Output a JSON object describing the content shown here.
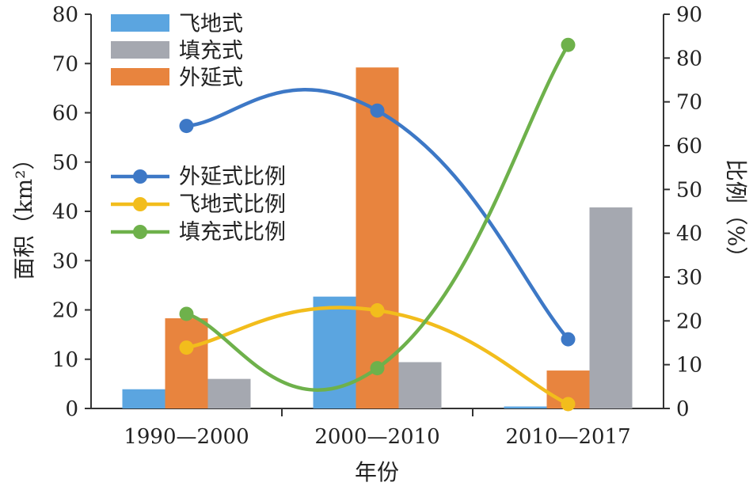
{
  "chart_data": {
    "type": "bar",
    "categories": [
      "1990—2000",
      "2000—2010",
      "2010—2017"
    ],
    "xlabel": "年份",
    "ylabel": "面积（km²）",
    "y2label": "比例（%）",
    "ylim": [
      0,
      80
    ],
    "y2lim": [
      0,
      90
    ],
    "yticks": [
      0,
      10,
      20,
      30,
      40,
      50,
      60,
      70,
      80
    ],
    "y2ticks": [
      0,
      10,
      20,
      30,
      40,
      50,
      60,
      70,
      80,
      90
    ],
    "grid": false,
    "bar_series": [
      {
        "name": "飞地式",
        "color": "#5ba5e0",
        "values": [
          3.9,
          22.7,
          0.4
        ]
      },
      {
        "name": "外延式",
        "color": "#e8843e",
        "values": [
          18.3,
          69.2,
          7.7
        ]
      },
      {
        "name": "填充式",
        "color": "#a5a8b0",
        "values": [
          6.0,
          9.4,
          40.8
        ]
      }
    ],
    "line_series": [
      {
        "name": "外延式比例",
        "color": "#3d78c6",
        "values": [
          64.5,
          68.0,
          15.8
        ]
      },
      {
        "name": "飞地式比例",
        "color": "#f2bd1c",
        "values": [
          13.9,
          22.4,
          1.0
        ]
      },
      {
        "name": "填充式比例",
        "color": "#6eb14b",
        "values": [
          21.6,
          9.2,
          83.0
        ]
      }
    ],
    "bar_legend_order": [
      "飞地式",
      "填充式",
      "外延式"
    ],
    "line_legend_order": [
      "外延式比例",
      "飞地式比例",
      "填充式比例"
    ],
    "legend_position": "top-left"
  }
}
